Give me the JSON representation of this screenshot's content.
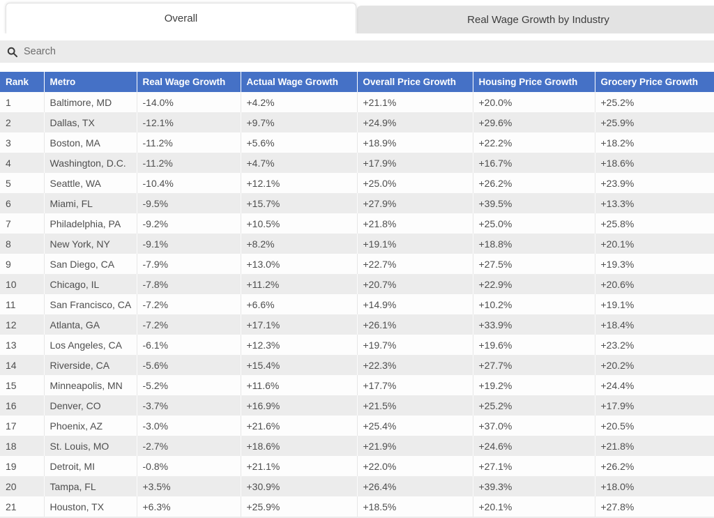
{
  "tabs": [
    {
      "label": "Overall",
      "active": true
    },
    {
      "label": "Real Wage Growth by Industry",
      "active": false
    }
  ],
  "search": {
    "placeholder": "Search",
    "value": "",
    "icon": "search-icon"
  },
  "table": {
    "columns": [
      "Rank",
      "Metro",
      "Real Wage Growth",
      "Actual Wage Growth",
      "Overall Price Growth",
      "Housing Price Growth",
      "Grocery Price Growth"
    ],
    "rows": [
      [
        "1",
        "Baltimore, MD",
        "-14.0%",
        "+4.2%",
        "+21.1%",
        "+20.0%",
        "+25.2%"
      ],
      [
        "2",
        "Dallas, TX",
        "-12.1%",
        "+9.7%",
        "+24.9%",
        "+29.6%",
        "+25.9%"
      ],
      [
        "3",
        "Boston, MA",
        "-11.2%",
        "+5.6%",
        "+18.9%",
        "+22.2%",
        "+18.2%"
      ],
      [
        "4",
        "Washington, D.C.",
        "-11.2%",
        "+4.7%",
        "+17.9%",
        "+16.7%",
        "+18.6%"
      ],
      [
        "5",
        "Seattle, WA",
        "-10.4%",
        "+12.1%",
        "+25.0%",
        "+26.2%",
        "+23.9%"
      ],
      [
        "6",
        "Miami, FL",
        "-9.5%",
        "+15.7%",
        "+27.9%",
        "+39.5%",
        "+13.3%"
      ],
      [
        "7",
        "Philadelphia, PA",
        "-9.2%",
        "+10.5%",
        "+21.8%",
        "+25.0%",
        "+25.8%"
      ],
      [
        "8",
        "New York, NY",
        "-9.1%",
        "+8.2%",
        "+19.1%",
        "+18.8%",
        "+20.1%"
      ],
      [
        "9",
        "San Diego, CA",
        "-7.9%",
        "+13.0%",
        "+22.7%",
        "+27.5%",
        "+19.3%"
      ],
      [
        "10",
        "Chicago, IL",
        "-7.8%",
        "+11.2%",
        "+20.7%",
        "+22.9%",
        "+20.6%"
      ],
      [
        "11",
        "San Francisco, CA",
        "-7.2%",
        "+6.6%",
        "+14.9%",
        "+10.2%",
        "+19.1%"
      ],
      [
        "12",
        "Atlanta, GA",
        "-7.2%",
        "+17.1%",
        "+26.1%",
        "+33.9%",
        "+18.4%"
      ],
      [
        "13",
        "Los Angeles, CA",
        "-6.1%",
        "+12.3%",
        "+19.7%",
        "+19.6%",
        "+23.2%"
      ],
      [
        "14",
        "Riverside, CA",
        "-5.6%",
        "+15.4%",
        "+22.3%",
        "+27.7%",
        "+20.2%"
      ],
      [
        "15",
        "Minneapolis, MN",
        "-5.2%",
        "+11.6%",
        "+17.7%",
        "+19.2%",
        "+24.4%"
      ],
      [
        "16",
        "Denver, CO",
        "-3.7%",
        "+16.9%",
        "+21.5%",
        "+25.2%",
        "+17.9%"
      ],
      [
        "17",
        "Phoenix, AZ",
        "-3.0%",
        "+21.6%",
        "+25.4%",
        "+37.0%",
        "+20.5%"
      ],
      [
        "18",
        "St. Louis, MO",
        "-2.7%",
        "+18.6%",
        "+21.9%",
        "+24.6%",
        "+21.8%"
      ],
      [
        "19",
        "Detroit, MI",
        "-0.8%",
        "+21.1%",
        "+22.0%",
        "+27.1%",
        "+26.2%"
      ],
      [
        "20",
        "Tampa, FL",
        "+3.5%",
        "+30.9%",
        "+26.4%",
        "+39.3%",
        "+18.0%"
      ],
      [
        "21",
        "Houston, TX",
        "+6.3%",
        "+25.9%",
        "+18.5%",
        "+20.1%",
        "+27.8%"
      ]
    ]
  },
  "colors": {
    "header_bg": "#4571c6",
    "header_text": "#ffffff",
    "row_alt_bg": "#ececec",
    "search_bg": "#ebebeb",
    "inactive_tab_bg": "#e3e3e3",
    "body_text": "#4e4e4e"
  }
}
